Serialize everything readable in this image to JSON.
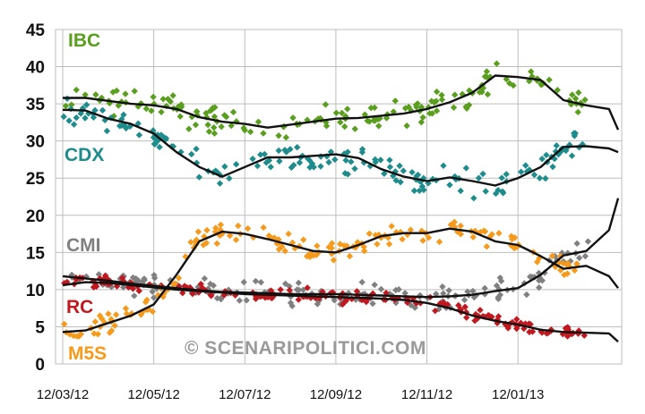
{
  "watermark": "© SCENARIPOLITICI.COM",
  "chart_data": {
    "type": "scatter",
    "title": "",
    "xlabel": "",
    "ylabel": "",
    "ylim": [
      0,
      45
    ],
    "yticks": [
      0,
      5,
      10,
      15,
      20,
      25,
      30,
      35,
      40,
      45
    ],
    "xticks": [
      "12/03/12",
      "12/05/12",
      "12/07/12",
      "12/09/12",
      "12/11/12",
      "12/01/13"
    ],
    "x_unit": "months since 12/03/12",
    "xlim": [
      0,
      12.2
    ],
    "grid": true,
    "legend": "inline-left",
    "series": [
      {
        "name": "IBC",
        "color": "#5a9e1e",
        "trend": [
          [
            0,
            35.8
          ],
          [
            0.5,
            35.8
          ],
          [
            1,
            35.4
          ],
          [
            1.5,
            35
          ],
          [
            2,
            34.8
          ],
          [
            2.5,
            34.3
          ],
          [
            3,
            33.2
          ],
          [
            3.5,
            32.6
          ],
          [
            4,
            32.3
          ],
          [
            4.5,
            31.8
          ],
          [
            5,
            32.2
          ],
          [
            5.5,
            32.6
          ],
          [
            6,
            33
          ],
          [
            6.5,
            33.1
          ],
          [
            7,
            33.4
          ],
          [
            7.5,
            33.7
          ],
          [
            8,
            34.3
          ],
          [
            8.5,
            35.2
          ],
          [
            9,
            36.5
          ],
          [
            9.5,
            38.8
          ],
          [
            10,
            38.6
          ],
          [
            10.5,
            38.2
          ],
          [
            11,
            35.5
          ],
          [
            11.5,
            34.8
          ],
          [
            12,
            34.3
          ],
          [
            12.2,
            31.5
          ]
        ],
        "spread": 2.6
      },
      {
        "name": "CDX",
        "color": "#1e8c8c",
        "trend": [
          [
            0,
            34.2
          ],
          [
            0.5,
            34.1
          ],
          [
            1,
            33
          ],
          [
            1.5,
            32.3
          ],
          [
            2,
            31
          ],
          [
            2.5,
            28.5
          ],
          [
            3,
            26.5
          ],
          [
            3.5,
            25.2
          ],
          [
            4,
            26.5
          ],
          [
            4.5,
            27.8
          ],
          [
            5,
            27.8
          ],
          [
            5.5,
            28
          ],
          [
            6,
            28.2
          ],
          [
            6.5,
            27.7
          ],
          [
            7,
            26.2
          ],
          [
            7.5,
            25.2
          ],
          [
            8,
            24.6
          ],
          [
            8.5,
            25.1
          ],
          [
            9,
            24.6
          ],
          [
            9.5,
            24
          ],
          [
            10,
            25
          ],
          [
            10.5,
            26.5
          ],
          [
            11,
            29.2
          ],
          [
            11.5,
            29.3
          ],
          [
            12,
            29
          ],
          [
            12.2,
            28.5
          ]
        ],
        "spread": 2.8
      },
      {
        "name": "CMI",
        "color": "#808080",
        "trend": [
          [
            0,
            11.8
          ],
          [
            0.5,
            11.5
          ],
          [
            1,
            11.2
          ],
          [
            1.5,
            10.8
          ],
          [
            2,
            10.5
          ],
          [
            2.5,
            10.2
          ],
          [
            3,
            9.9
          ],
          [
            3.5,
            9.7
          ],
          [
            4,
            9.6
          ],
          [
            4.5,
            9.5
          ],
          [
            5,
            9.4
          ],
          [
            5.5,
            9.4
          ],
          [
            6,
            9.4
          ],
          [
            6.5,
            9.3
          ],
          [
            7,
            9.2
          ],
          [
            7.5,
            9.1
          ],
          [
            8,
            9
          ],
          [
            8.5,
            9.1
          ],
          [
            9,
            9.3
          ],
          [
            9.5,
            9.8
          ],
          [
            10,
            10.2
          ],
          [
            10.5,
            12
          ],
          [
            11,
            14.6
          ],
          [
            11.5,
            15.2
          ],
          [
            12,
            18
          ],
          [
            12.2,
            22.3
          ]
        ],
        "spread": 2.2
      },
      {
        "name": "RC",
        "color": "#c0181e",
        "trend": [
          [
            0,
            10.6
          ],
          [
            0.5,
            11
          ],
          [
            1,
            10.9
          ],
          [
            1.5,
            10.6
          ],
          [
            2,
            10.3
          ],
          [
            2.5,
            10
          ],
          [
            3,
            9.8
          ],
          [
            3.5,
            9.6
          ],
          [
            4,
            9.4
          ],
          [
            4.5,
            9.3
          ],
          [
            5,
            9.2
          ],
          [
            5.5,
            9.1
          ],
          [
            6,
            9
          ],
          [
            6.5,
            8.9
          ],
          [
            7,
            8.8
          ],
          [
            7.5,
            8.6
          ],
          [
            8,
            8.2
          ],
          [
            8.5,
            7.5
          ],
          [
            9,
            6.5
          ],
          [
            9.5,
            5.8
          ],
          [
            10,
            5.3
          ],
          [
            10.5,
            4.6
          ],
          [
            11,
            4.3
          ],
          [
            11.5,
            4.2
          ],
          [
            12,
            4.1
          ],
          [
            12.2,
            3
          ]
        ],
        "spread": 1.3
      },
      {
        "name": "M5S",
        "color": "#f59a1a",
        "trend": [
          [
            0,
            4.3
          ],
          [
            0.5,
            4.5
          ],
          [
            1,
            5.5
          ],
          [
            1.5,
            6.5
          ],
          [
            2,
            8
          ],
          [
            2.5,
            12
          ],
          [
            3,
            16.5
          ],
          [
            3.5,
            17.8
          ],
          [
            4,
            17.5
          ],
          [
            4.5,
            16.8
          ],
          [
            5,
            16
          ],
          [
            5.5,
            15.2
          ],
          [
            6,
            15
          ],
          [
            6.5,
            16
          ],
          [
            7,
            17.2
          ],
          [
            7.5,
            17.6
          ],
          [
            8,
            17.6
          ],
          [
            8.5,
            18.2
          ],
          [
            9,
            17.8
          ],
          [
            9.5,
            16.5
          ],
          [
            10,
            16
          ],
          [
            10.5,
            14.5
          ],
          [
            11,
            12.8
          ],
          [
            11.5,
            13.2
          ],
          [
            12,
            11.8
          ],
          [
            12.2,
            10.2
          ]
        ],
        "spread": 2.2
      }
    ]
  }
}
